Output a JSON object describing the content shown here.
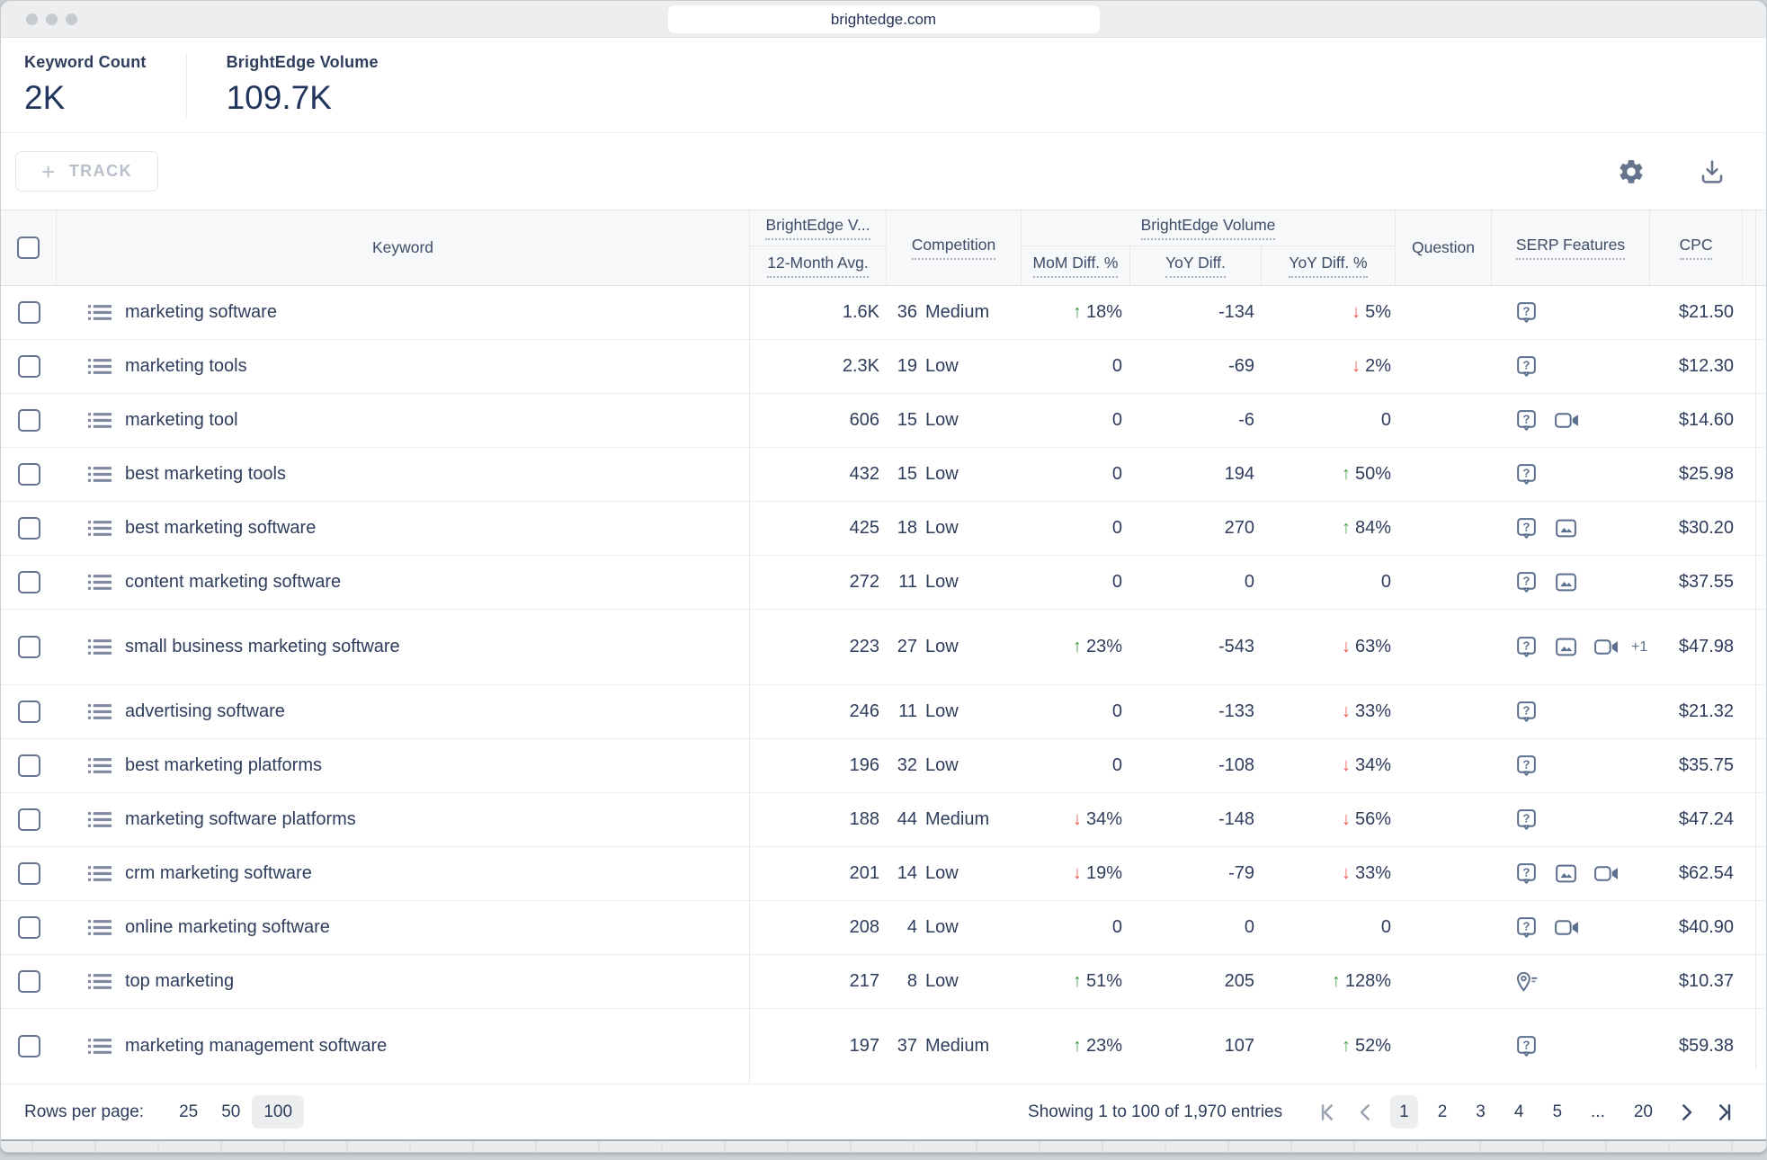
{
  "browser": {
    "url": "brightedge.com"
  },
  "stats": [
    {
      "label": "Keyword Count",
      "value": "2K"
    },
    {
      "label": "BrightEdge Volume",
      "value": "109.7K"
    }
  ],
  "toolbar": {
    "track_label": "TRACK",
    "plus": "+"
  },
  "table": {
    "headers": {
      "keyword": "Keyword",
      "be_volume_truncated": "BrightEdge V...",
      "twelve_month_avg": "12-Month Avg.",
      "competition": "Competition",
      "be_volume_group": "BrightEdge Volume",
      "mom_diff_pct": "MoM Diff. %",
      "yoy_diff": "YoY Diff.",
      "yoy_diff_pct": "YoY Diff. %",
      "question": "Question",
      "serp_features": "SERP Features",
      "cpc": "CPC"
    },
    "rows": [
      {
        "keyword": "marketing software",
        "avg": "1.6K",
        "comp_num": "36",
        "comp_label": "Medium",
        "mom": {
          "dir": "up",
          "text": "18%"
        },
        "yoy": "-134",
        "yoy_pct": {
          "dir": "down",
          "text": "5%"
        },
        "serp": [
          "question"
        ],
        "extra": "",
        "cpc": "$21.50",
        "tall": false
      },
      {
        "keyword": "marketing tools",
        "avg": "2.3K",
        "comp_num": "19",
        "comp_label": "Low",
        "mom": {
          "dir": "",
          "text": "0"
        },
        "yoy": "-69",
        "yoy_pct": {
          "dir": "down",
          "text": "2%"
        },
        "serp": [
          "question"
        ],
        "extra": "",
        "cpc": "$12.30",
        "tall": false
      },
      {
        "keyword": "marketing tool",
        "avg": "606",
        "comp_num": "15",
        "comp_label": "Low",
        "mom": {
          "dir": "",
          "text": "0"
        },
        "yoy": "-6",
        "yoy_pct": {
          "dir": "",
          "text": "0"
        },
        "serp": [
          "question",
          "video"
        ],
        "extra": "",
        "cpc": "$14.60",
        "tall": false
      },
      {
        "keyword": "best marketing tools",
        "avg": "432",
        "comp_num": "15",
        "comp_label": "Low",
        "mom": {
          "dir": "",
          "text": "0"
        },
        "yoy": "194",
        "yoy_pct": {
          "dir": "up",
          "text": "50%"
        },
        "serp": [
          "question"
        ],
        "extra": "",
        "cpc": "$25.98",
        "tall": false
      },
      {
        "keyword": "best marketing software",
        "avg": "425",
        "comp_num": "18",
        "comp_label": "Low",
        "mom": {
          "dir": "",
          "text": "0"
        },
        "yoy": "270",
        "yoy_pct": {
          "dir": "up",
          "text": "84%"
        },
        "serp": [
          "question",
          "image"
        ],
        "extra": "",
        "cpc": "$30.20",
        "tall": false
      },
      {
        "keyword": "content marketing software",
        "avg": "272",
        "comp_num": "11",
        "comp_label": "Low",
        "mom": {
          "dir": "",
          "text": "0"
        },
        "yoy": "0",
        "yoy_pct": {
          "dir": "",
          "text": "0"
        },
        "serp": [
          "question",
          "image"
        ],
        "extra": "",
        "cpc": "$37.55",
        "tall": false
      },
      {
        "keyword": "small business marketing software",
        "avg": "223",
        "comp_num": "27",
        "comp_label": "Low",
        "mom": {
          "dir": "up",
          "text": "23%"
        },
        "yoy": "-543",
        "yoy_pct": {
          "dir": "down",
          "text": "63%"
        },
        "serp": [
          "question",
          "image",
          "video"
        ],
        "extra": "+1",
        "cpc": "$47.98",
        "tall": true
      },
      {
        "keyword": "advertising software",
        "avg": "246",
        "comp_num": "11",
        "comp_label": "Low",
        "mom": {
          "dir": "",
          "text": "0"
        },
        "yoy": "-133",
        "yoy_pct": {
          "dir": "down",
          "text": "33%"
        },
        "serp": [
          "question"
        ],
        "extra": "",
        "cpc": "$21.32",
        "tall": false
      },
      {
        "keyword": "best marketing platforms",
        "avg": "196",
        "comp_num": "32",
        "comp_label": "Low",
        "mom": {
          "dir": "",
          "text": "0"
        },
        "yoy": "-108",
        "yoy_pct": {
          "dir": "down",
          "text": "34%"
        },
        "serp": [
          "question"
        ],
        "extra": "",
        "cpc": "$35.75",
        "tall": false
      },
      {
        "keyword": "marketing software platforms",
        "avg": "188",
        "comp_num": "44",
        "comp_label": "Medium",
        "mom": {
          "dir": "down",
          "text": "34%"
        },
        "yoy": "-148",
        "yoy_pct": {
          "dir": "down",
          "text": "56%"
        },
        "serp": [
          "question"
        ],
        "extra": "",
        "cpc": "$47.24",
        "tall": false
      },
      {
        "keyword": "crm marketing software",
        "avg": "201",
        "comp_num": "14",
        "comp_label": "Low",
        "mom": {
          "dir": "down",
          "text": "19%"
        },
        "yoy": "-79",
        "yoy_pct": {
          "dir": "down",
          "text": "33%"
        },
        "serp": [
          "question",
          "image",
          "video"
        ],
        "extra": "",
        "cpc": "$62.54",
        "tall": false
      },
      {
        "keyword": "online marketing software",
        "avg": "208",
        "comp_num": "4",
        "comp_label": "Low",
        "mom": {
          "dir": "",
          "text": "0"
        },
        "yoy": "0",
        "yoy_pct": {
          "dir": "",
          "text": "0"
        },
        "serp": [
          "question",
          "video"
        ],
        "extra": "",
        "cpc": "$40.90",
        "tall": false
      },
      {
        "keyword": "top marketing",
        "avg": "217",
        "comp_num": "8",
        "comp_label": "Low",
        "mom": {
          "dir": "up",
          "text": "51%"
        },
        "yoy": "205",
        "yoy_pct": {
          "dir": "up",
          "text": "128%"
        },
        "serp": [
          "local"
        ],
        "extra": "",
        "cpc": "$10.37",
        "tall": false
      },
      {
        "keyword": "marketing management software",
        "avg": "197",
        "comp_num": "37",
        "comp_label": "Medium",
        "mom": {
          "dir": "up",
          "text": "23%"
        },
        "yoy": "107",
        "yoy_pct": {
          "dir": "up",
          "text": "52%"
        },
        "serp": [
          "question"
        ],
        "extra": "",
        "cpc": "$59.38",
        "tall": true
      }
    ]
  },
  "footer": {
    "rows_per_page_label": "Rows per page:",
    "page_sizes": [
      "25",
      "50",
      "100"
    ],
    "active_page_size": "100",
    "showing_text": "Showing 1 to 100 of 1,970 entries",
    "pages": [
      "1",
      "2",
      "3",
      "4",
      "5",
      "...",
      "20"
    ],
    "active_page": "1"
  },
  "colors": {
    "text_navy": "#2e3d5c",
    "up_green": "#43a047",
    "down_red": "#e8564b",
    "icon_blue_gray": "#5b6e8c",
    "header_bg": "#f7f8f9"
  },
  "icons": [
    "window-dots",
    "question-icon",
    "image-icon",
    "video-icon",
    "local-pin-icon",
    "list-icon",
    "gear-icon",
    "download-icon",
    "first-page-icon",
    "prev-page-icon",
    "next-page-icon",
    "last-page-icon"
  ]
}
